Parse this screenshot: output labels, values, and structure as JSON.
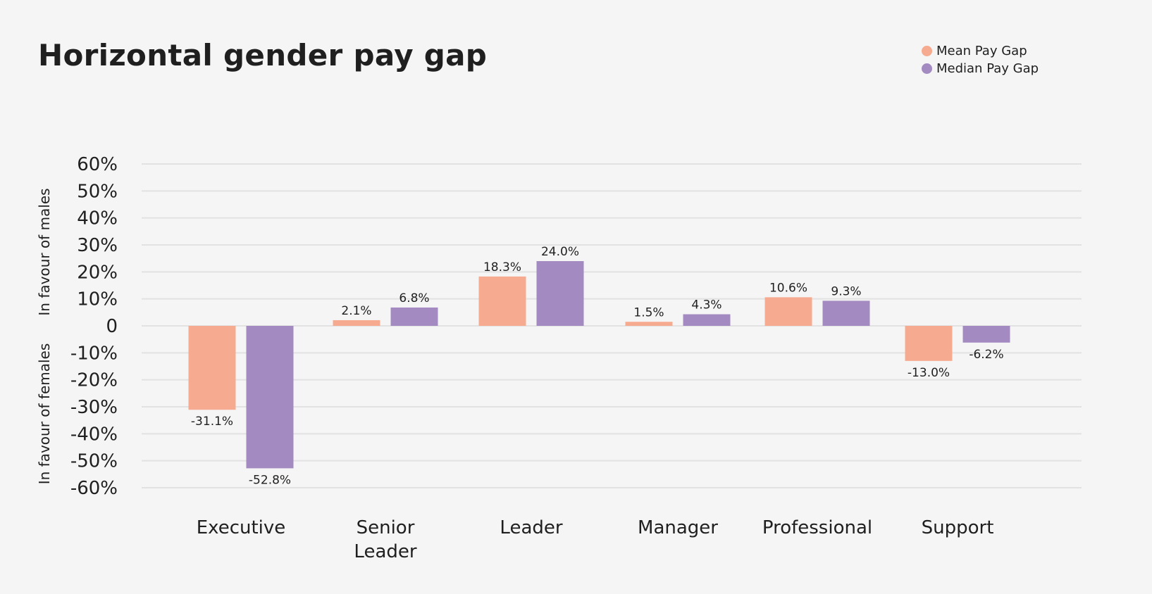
{
  "chart_data": {
    "type": "bar",
    "title": "Horizontal gender pay gap",
    "categories": [
      [
        "Executive"
      ],
      [
        "Senior",
        "Leader"
      ],
      [
        "Leader"
      ],
      [
        "Manager"
      ],
      [
        "Professional"
      ],
      [
        "Support"
      ]
    ],
    "series": [
      {
        "name": "Mean Pay Gap",
        "color": "#f6aa8f",
        "values": [
          -31.1,
          2.1,
          18.3,
          1.5,
          10.6,
          -13.0
        ],
        "labels": [
          "-31.1%",
          "2.1%",
          "18.3%",
          "1.5%",
          "10.6%",
          "-13.0%"
        ]
      },
      {
        "name": "Median Pay Gap",
        "color": "#a38ac0",
        "values": [
          -52.8,
          6.8,
          24.0,
          4.3,
          9.3,
          -6.2
        ],
        "labels": [
          "-52.8%",
          "6.8%",
          "24.0%",
          "4.3%",
          "9.3%",
          "-6.2%"
        ]
      }
    ],
    "ylim": [
      -60,
      60
    ],
    "yticks": [
      60,
      50,
      40,
      30,
      20,
      10,
      0,
      -10,
      -20,
      -30,
      -40,
      -50,
      -60
    ],
    "ytick_labels": [
      "60%",
      "50%",
      "40%",
      "30%",
      "20%",
      "10%",
      "0",
      "-10%",
      "-20%",
      "-30%",
      "-40%",
      "-50%",
      "-60%"
    ],
    "ylabel_top": "In favour of males",
    "ylabel_bottom": "In favour of females",
    "grid": true,
    "legend": "top-right"
  }
}
